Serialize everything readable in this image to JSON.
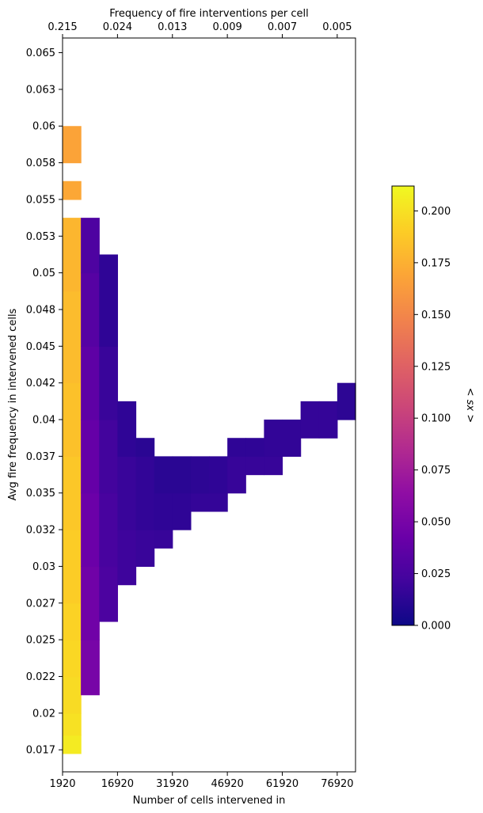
{
  "chart_data": {
    "type": "heatmap",
    "title": "",
    "xlabel": "Number of cells intervened in",
    "ylabel": "Avg fire frequency in intervened cells",
    "top_xlabel": "Frequency of fire interventions per cell",
    "colorbar_label": "< sx >",
    "colormap": "plasma",
    "x_tick_labels": [
      "1920",
      "16920",
      "31920",
      "46920",
      "61920",
      "76920"
    ],
    "x_tick_values": [
      1920,
      16920,
      31920,
      46920,
      61920,
      76920
    ],
    "top_tick_labels": [
      "0.215",
      "0.024",
      "0.013",
      "0.009",
      "0.007",
      "0.005"
    ],
    "y_tick_labels": [
      "0.017",
      "0.02",
      "0.022",
      "0.025",
      "0.027",
      "0.03",
      "0.032",
      "0.035",
      "0.037",
      "0.04",
      "0.042",
      "0.045",
      "0.048",
      "0.05",
      "0.053",
      "0.055",
      "0.058",
      "0.06",
      "0.063",
      "0.065"
    ],
    "y_tick_values": [
      0.0175,
      0.02,
      0.0225,
      0.025,
      0.0275,
      0.03,
      0.0325,
      0.035,
      0.0375,
      0.04,
      0.0425,
      0.045,
      0.0475,
      0.05,
      0.0525,
      0.055,
      0.0575,
      0.06,
      0.0625,
      0.065
    ],
    "xlim": [
      1920,
      81920
    ],
    "ylim": [
      0.016,
      0.066
    ],
    "x_bin_width": 5000,
    "y_bin_width": 0.00125,
    "colorbar_ticks": [
      "0.000",
      "0.025",
      "0.050",
      "0.075",
      "0.100",
      "0.125",
      "0.150",
      "0.175",
      "0.200"
    ],
    "colorbar_tick_values": [
      0,
      0.025,
      0.05,
      0.075,
      0.1,
      0.125,
      0.15,
      0.175,
      0.2
    ],
    "colorbar_range": [
      0,
      0.212
    ],
    "columns": [
      {
        "x_start": 1920,
        "runs": [
          {
            "y_start": 0.01725,
            "y_end": 0.0185,
            "value": 0.205
          },
          {
            "y_start": 0.0185,
            "y_end": 0.02,
            "value": 0.2
          },
          {
            "y_start": 0.02,
            "y_end": 0.0225,
            "value": 0.197
          },
          {
            "y_start": 0.0225,
            "y_end": 0.025,
            "value": 0.195
          },
          {
            "y_start": 0.025,
            "y_end": 0.0275,
            "value": 0.193
          },
          {
            "y_start": 0.0275,
            "y_end": 0.0325,
            "value": 0.19
          },
          {
            "y_start": 0.0325,
            "y_end": 0.0375,
            "value": 0.187
          },
          {
            "y_start": 0.0375,
            "y_end": 0.0425,
            "value": 0.184
          },
          {
            "y_start": 0.0425,
            "y_end": 0.04875,
            "value": 0.181
          },
          {
            "y_start": 0.04875,
            "y_end": 0.05375,
            "value": 0.178
          },
          {
            "y_start": 0.055,
            "y_end": 0.05625,
            "value": 0.17
          },
          {
            "y_start": 0.0575,
            "y_end": 0.06,
            "value": 0.168
          }
        ]
      },
      {
        "x_start": 6920,
        "runs": [
          {
            "y_start": 0.02125,
            "y_end": 0.025,
            "value": 0.05
          },
          {
            "y_start": 0.025,
            "y_end": 0.03,
            "value": 0.046
          },
          {
            "y_start": 0.03,
            "y_end": 0.035,
            "value": 0.043
          },
          {
            "y_start": 0.035,
            "y_end": 0.04,
            "value": 0.04
          },
          {
            "y_start": 0.04,
            "y_end": 0.045,
            "value": 0.036
          },
          {
            "y_start": 0.045,
            "y_end": 0.05,
            "value": 0.032
          },
          {
            "y_start": 0.05,
            "y_end": 0.05375,
            "value": 0.028
          }
        ]
      },
      {
        "x_start": 11920,
        "runs": [
          {
            "y_start": 0.02625,
            "y_end": 0.03,
            "value": 0.027
          },
          {
            "y_start": 0.03,
            "y_end": 0.035,
            "value": 0.025
          },
          {
            "y_start": 0.035,
            "y_end": 0.04,
            "value": 0.022
          },
          {
            "y_start": 0.04,
            "y_end": 0.045,
            "value": 0.018
          },
          {
            "y_start": 0.045,
            "y_end": 0.05125,
            "value": 0.014
          }
        ]
      },
      {
        "x_start": 16920,
        "runs": [
          {
            "y_start": 0.02875,
            "y_end": 0.0325,
            "value": 0.02
          },
          {
            "y_start": 0.0325,
            "y_end": 0.0375,
            "value": 0.018
          },
          {
            "y_start": 0.0375,
            "y_end": 0.04125,
            "value": 0.014
          }
        ]
      },
      {
        "x_start": 21920,
        "runs": [
          {
            "y_start": 0.03,
            "y_end": 0.0325,
            "value": 0.018
          },
          {
            "y_start": 0.0325,
            "y_end": 0.0375,
            "value": 0.015
          },
          {
            "y_start": 0.0375,
            "y_end": 0.03875,
            "value": 0.012
          }
        ]
      },
      {
        "x_start": 26920,
        "runs": [
          {
            "y_start": 0.03125,
            "y_end": 0.0325,
            "value": 0.017
          },
          {
            "y_start": 0.0325,
            "y_end": 0.035,
            "value": 0.014
          },
          {
            "y_start": 0.035,
            "y_end": 0.0375,
            "value": 0.012
          }
        ]
      },
      {
        "x_start": 31920,
        "runs": [
          {
            "y_start": 0.0325,
            "y_end": 0.035,
            "value": 0.014
          },
          {
            "y_start": 0.035,
            "y_end": 0.0375,
            "value": 0.012
          }
        ]
      },
      {
        "x_start": 36920,
        "runs": [
          {
            "y_start": 0.03375,
            "y_end": 0.035,
            "value": 0.016
          },
          {
            "y_start": 0.035,
            "y_end": 0.0375,
            "value": 0.013
          }
        ]
      },
      {
        "x_start": 41920,
        "runs": [
          {
            "y_start": 0.03375,
            "y_end": 0.035,
            "value": 0.016
          },
          {
            "y_start": 0.035,
            "y_end": 0.0375,
            "value": 0.014
          }
        ]
      },
      {
        "x_start": 46920,
        "runs": [
          {
            "y_start": 0.035,
            "y_end": 0.0375,
            "value": 0.017
          },
          {
            "y_start": 0.0375,
            "y_end": 0.03875,
            "value": 0.014
          }
        ]
      },
      {
        "x_start": 51920,
        "runs": [
          {
            "y_start": 0.03625,
            "y_end": 0.0375,
            "value": 0.017
          },
          {
            "y_start": 0.0375,
            "y_end": 0.03875,
            "value": 0.014
          }
        ]
      },
      {
        "x_start": 56920,
        "runs": [
          {
            "y_start": 0.03625,
            "y_end": 0.0375,
            "value": 0.017
          },
          {
            "y_start": 0.0375,
            "y_end": 0.04,
            "value": 0.015
          }
        ]
      },
      {
        "x_start": 61920,
        "runs": [
          {
            "y_start": 0.0375,
            "y_end": 0.04,
            "value": 0.015
          }
        ]
      },
      {
        "x_start": 66920,
        "runs": [
          {
            "y_start": 0.03875,
            "y_end": 0.04125,
            "value": 0.016
          }
        ]
      },
      {
        "x_start": 71920,
        "runs": [
          {
            "y_start": 0.03875,
            "y_end": 0.04125,
            "value": 0.016
          }
        ]
      },
      {
        "x_start": 76920,
        "runs": [
          {
            "y_start": 0.04,
            "y_end": 0.0425,
            "value": 0.013
          }
        ]
      }
    ]
  }
}
